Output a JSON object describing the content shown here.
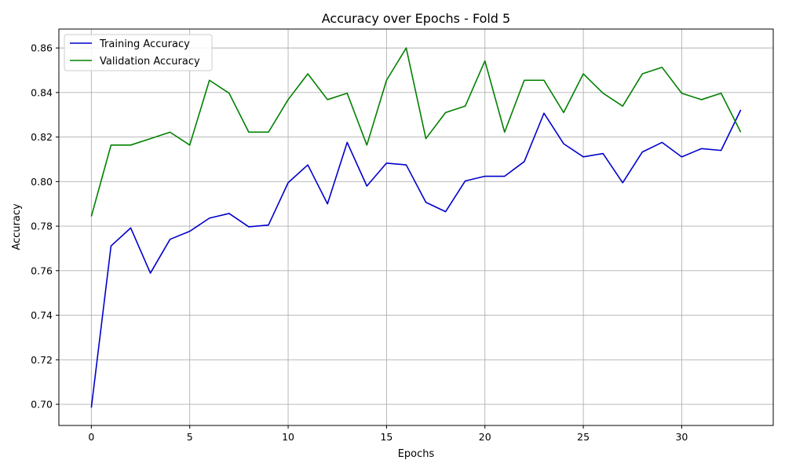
{
  "chart_data": {
    "type": "line",
    "title": "Accuracy over Epochs - Fold 5",
    "xlabel": "Epochs",
    "ylabel": "Accuracy",
    "xlim": [
      -1.65,
      34.65
    ],
    "ylim": [
      0.6905,
      0.8685
    ],
    "xticks": [
      0,
      5,
      10,
      15,
      20,
      25,
      30
    ],
    "yticks": [
      0.7,
      0.72,
      0.74,
      0.76,
      0.78,
      0.8,
      0.82,
      0.84,
      0.86
    ],
    "grid": true,
    "legend": "top-left",
    "x": [
      0,
      1,
      2,
      3,
      4,
      5,
      6,
      7,
      8,
      9,
      10,
      11,
      12,
      13,
      14,
      15,
      16,
      17,
      18,
      19,
      20,
      21,
      22,
      23,
      24,
      25,
      26,
      27,
      28,
      29,
      30,
      31,
      32,
      33
    ],
    "series": [
      {
        "name": "Training Accuracy",
        "color": "#0000cc",
        "values": [
          0.6985,
          0.7711,
          0.7792,
          0.7589,
          0.7741,
          0.7777,
          0.7836,
          0.7857,
          0.7797,
          0.7805,
          0.7995,
          0.8075,
          0.79,
          0.8176,
          0.798,
          0.8083,
          0.8075,
          0.7907,
          0.7865,
          0.8003,
          0.8024,
          0.8024,
          0.809,
          0.8307,
          0.817,
          0.8111,
          0.8126,
          0.7995,
          0.8133,
          0.8176,
          0.8111,
          0.8148,
          0.814,
          0.8322
        ]
      },
      {
        "name": "Validation Accuracy",
        "color": "#008000",
        "values": [
          0.7844,
          0.8164,
          0.8164,
          0.8193,
          0.8222,
          0.8164,
          0.8455,
          0.8397,
          0.8222,
          0.8222,
          0.8368,
          0.8484,
          0.8368,
          0.8397,
          0.8164,
          0.8455,
          0.86,
          0.8193,
          0.831,
          0.8339,
          0.8542,
          0.8222,
          0.8455,
          0.8455,
          0.831,
          0.8484,
          0.8397,
          0.8339,
          0.8484,
          0.8513,
          0.8397,
          0.8368,
          0.8397,
          0.8222
        ]
      }
    ]
  }
}
